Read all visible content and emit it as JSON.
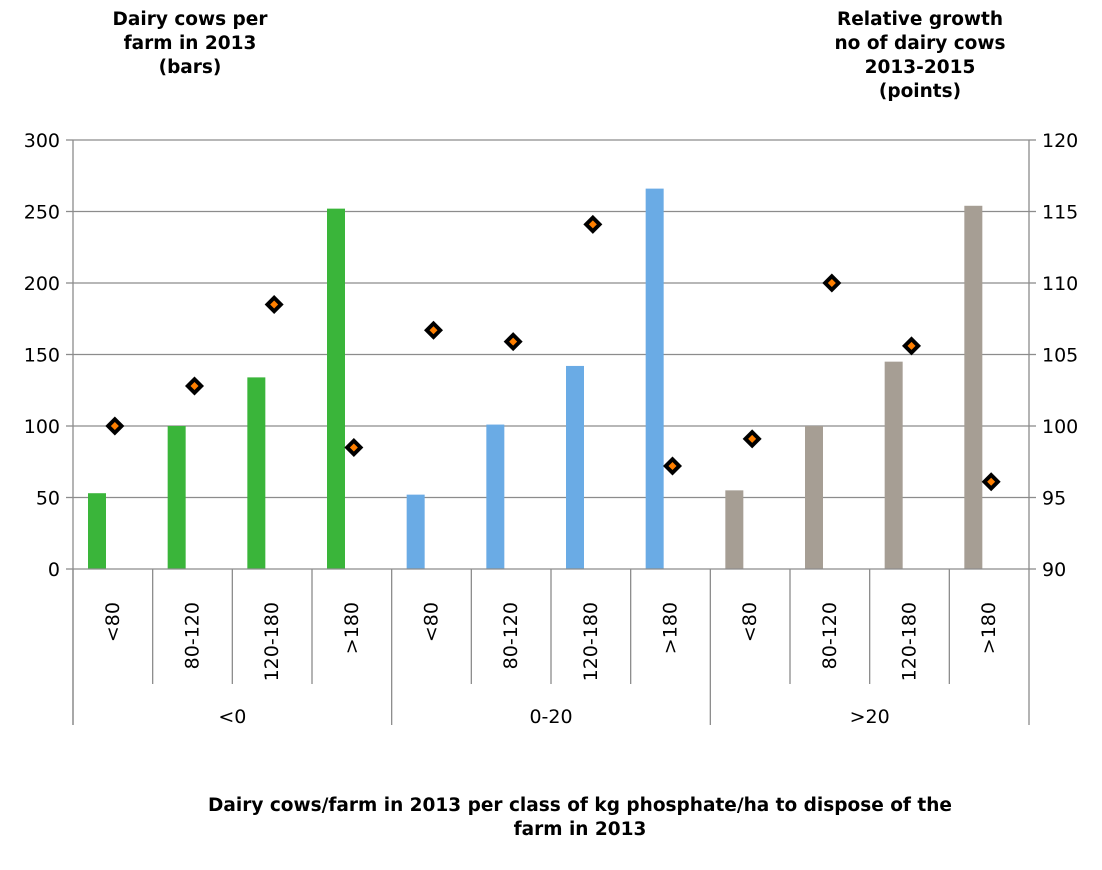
{
  "chart_data": {
    "type": "bar",
    "left_axis_title": "Dairy cows per\nfarm in 2013\n(bars)",
    "right_axis_title": "Relative growth\nno of dairy cows\n2013-2015\n(points)",
    "xlabel": "Dairy cows/farm in 2013 per class of kg phosphate/ha to dispose of the\nfarm in 2013",
    "y_left": {
      "lim": [
        0,
        300
      ],
      "ticks": [
        0,
        50,
        100,
        150,
        200,
        250,
        300
      ]
    },
    "y_right": {
      "lim": [
        90,
        120
      ],
      "ticks": [
        90,
        95,
        100,
        105,
        110,
        115,
        120
      ]
    },
    "grid": true,
    "groups": [
      {
        "label": "<0",
        "color": "#3ab53a"
      },
      {
        "label": "0-20",
        "color": "#6aabe5"
      },
      {
        "label": ">20",
        "color": "#a69e94"
      }
    ],
    "categories": [
      "<80",
      "80-120",
      "120-180",
      ">180"
    ],
    "bars": [
      [
        53,
        100,
        134,
        252
      ],
      [
        52,
        101,
        142,
        266
      ],
      [
        55,
        100,
        145,
        254
      ]
    ],
    "points": [
      [
        100.0,
        102.8,
        108.5,
        98.5
      ],
      [
        106.7,
        105.9,
        114.1,
        97.2
      ],
      [
        99.1,
        110.0,
        105.6,
        96.1
      ]
    ],
    "point_fill": "#ff7f00",
    "point_edge": "#000000"
  }
}
